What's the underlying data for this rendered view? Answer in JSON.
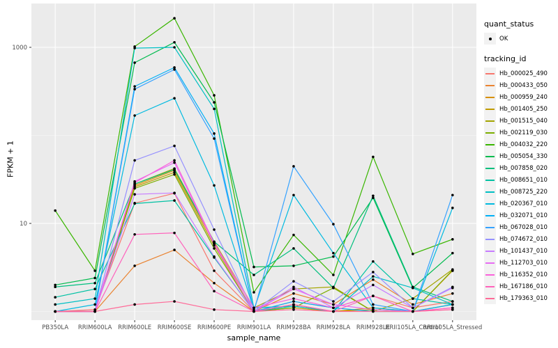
{
  "figure": {
    "y_tick_labels": [
      "10",
      "1000"
    ],
    "panel_background": "#EBEBEB",
    "gridline_color": "#FFFFFF",
    "tick_mark_color": "#333333",
    "tick_label_color": "#4D4D4D",
    "point_color": "#000000"
  },
  "legend": {
    "quant_status_title": "quant_status",
    "quant_status_items": [
      {
        "label": "OK",
        "marker": "black-point"
      }
    ],
    "tracking_id_title": "tracking_id"
  },
  "chart_data": {
    "type": "line",
    "title": "",
    "xlabel": "sample_name",
    "ylabel": "FPKM + 1",
    "y_scale": "log10",
    "y_major_breaks": [
      10,
      1000
    ],
    "y_minor_breaks": [
      1,
      100
    ],
    "ylim": [
      0.9,
      3000
    ],
    "grid": true,
    "legend_position": "right",
    "categories": [
      "PB350LA",
      "RRIM600LA",
      "RRIM600LE",
      "RRIM600SE",
      "RRIM600PE",
      "RRIM901LA",
      "RRIM928BA",
      "RRIM928LA",
      "RRIM928LE",
      "RRII105LA_Control",
      "RRII105LA_Stressed"
    ],
    "series": [
      {
        "name": "Hb_000025_490",
        "color": "#F8766D",
        "values": [
          1.0,
          1.05,
          17,
          22,
          2.9,
          1.0,
          1.3,
          1.1,
          1.5,
          1.1,
          1.3
        ]
      },
      {
        "name": "Hb_000433_050",
        "color": "#EA8331",
        "values": [
          1.0,
          1.0,
          3.3,
          5.0,
          2.1,
          1.0,
          1.6,
          1.2,
          2.3,
          1.2,
          1.6
        ]
      },
      {
        "name": "Hb_000959_240",
        "color": "#D89000",
        "values": [
          1.0,
          1.0,
          27,
          40,
          6.0,
          1.0,
          1.2,
          1.0,
          1.1,
          1.0,
          2.9
        ]
      },
      {
        "name": "Hb_001405_250",
        "color": "#C09B00",
        "values": [
          1.0,
          1.0,
          26,
          38,
          5.6,
          1.0,
          1.1,
          1.0,
          1.05,
          1.0,
          1.2
        ]
      },
      {
        "name": "Hb_001515_040",
        "color": "#A3A500",
        "values": [
          1.0,
          1.0,
          28,
          42,
          6.2,
          1.1,
          1.8,
          1.9,
          1.0,
          1.4,
          3.0
        ]
      },
      {
        "name": "Hb_002119_030",
        "color": "#7CAE00",
        "values": [
          1.0,
          1.0,
          25,
          36,
          5.2,
          1.0,
          1.1,
          1.85,
          1.0,
          1.0,
          2.95
        ]
      },
      {
        "name": "Hb_004032_220",
        "color": "#39B600",
        "values": [
          14,
          2.9,
          1020,
          2140,
          285,
          1.65,
          7.4,
          2.6,
          57,
          4.5,
          6.6
        ]
      },
      {
        "name": "Hb_005054_330",
        "color": "#00BB4E",
        "values": [
          2.0,
          2.4,
          670,
          1140,
          237,
          3.2,
          3.3,
          4.2,
          19.5,
          1.85,
          4.6
        ]
      },
      {
        "name": "Hb_007858_020",
        "color": "#00BF7D",
        "values": [
          1.9,
          2.1,
          28,
          41,
          6.2,
          2.6,
          5.2,
          1.85,
          20.6,
          1.9,
          1.3
        ]
      },
      {
        "name": "Hb_008651_010",
        "color": "#00C1A3",
        "values": [
          1.45,
          1.8,
          16.8,
          18.2,
          4.1,
          1.0,
          1.15,
          1.0,
          3.7,
          1.4,
          1.2
        ]
      },
      {
        "name": "Hb_008725_220",
        "color": "#00BFC4",
        "values": [
          1.2,
          1.4,
          980,
          1000,
          200,
          1.1,
          1.15,
          1.0,
          2.5,
          1.85,
          1.2
        ]
      },
      {
        "name": "Hb_020367_010",
        "color": "#00BAE0",
        "values": [
          1.0,
          1.2,
          168,
          264,
          27,
          1.05,
          21,
          4.6,
          1.1,
          1.0,
          15
        ]
      },
      {
        "name": "Hb_032071_010",
        "color": "#00B0F6",
        "values": [
          1.0,
          1.0,
          360,
          590,
          105,
          1.0,
          1.3,
          1.1,
          1.0,
          1.0,
          1.2
        ]
      },
      {
        "name": "Hb_067028_010",
        "color": "#35A2FF",
        "values": [
          1.0,
          1.0,
          335,
          560,
          92,
          1.0,
          44.5,
          9.8,
          1.2,
          1.0,
          21
        ]
      },
      {
        "name": "Hb_074672_010",
        "color": "#9590FF",
        "values": [
          1.0,
          1.0,
          52,
          76,
          8.5,
          1.0,
          2.2,
          1.3,
          2.8,
          1.1,
          1.9
        ]
      },
      {
        "name": "Hb_101437_010",
        "color": "#C77CFF",
        "values": [
          1.0,
          1.0,
          21.4,
          22.2,
          4.2,
          1.0,
          1.9,
          1.1,
          2.0,
          1.1,
          1.85
        ]
      },
      {
        "name": "Hb_112703_010",
        "color": "#E76BF3",
        "values": [
          1.0,
          1.0,
          30,
          49,
          5.8,
          1.0,
          1.8,
          1.2,
          1.05,
          1.0,
          1.1
        ]
      },
      {
        "name": "Hb_116352_010",
        "color": "#FA62DB",
        "values": [
          1.0,
          1.0,
          29,
          52,
          6.0,
          1.1,
          1.4,
          1.1,
          1.5,
          1.0,
          1.05
        ]
      },
      {
        "name": "Hb_167186_010",
        "color": "#FF62BC",
        "values": [
          1.0,
          1.0,
          7.5,
          7.8,
          1.7,
          1.0,
          1.2,
          1.0,
          1.5,
          1.0,
          1.1
        ]
      },
      {
        "name": "Hb_179363_010",
        "color": "#FF6A98",
        "values": [
          1.0,
          1.0,
          1.2,
          1.3,
          1.05,
          1.0,
          1.05,
          1.0,
          1.0,
          1.0,
          1.05
        ]
      }
    ]
  }
}
